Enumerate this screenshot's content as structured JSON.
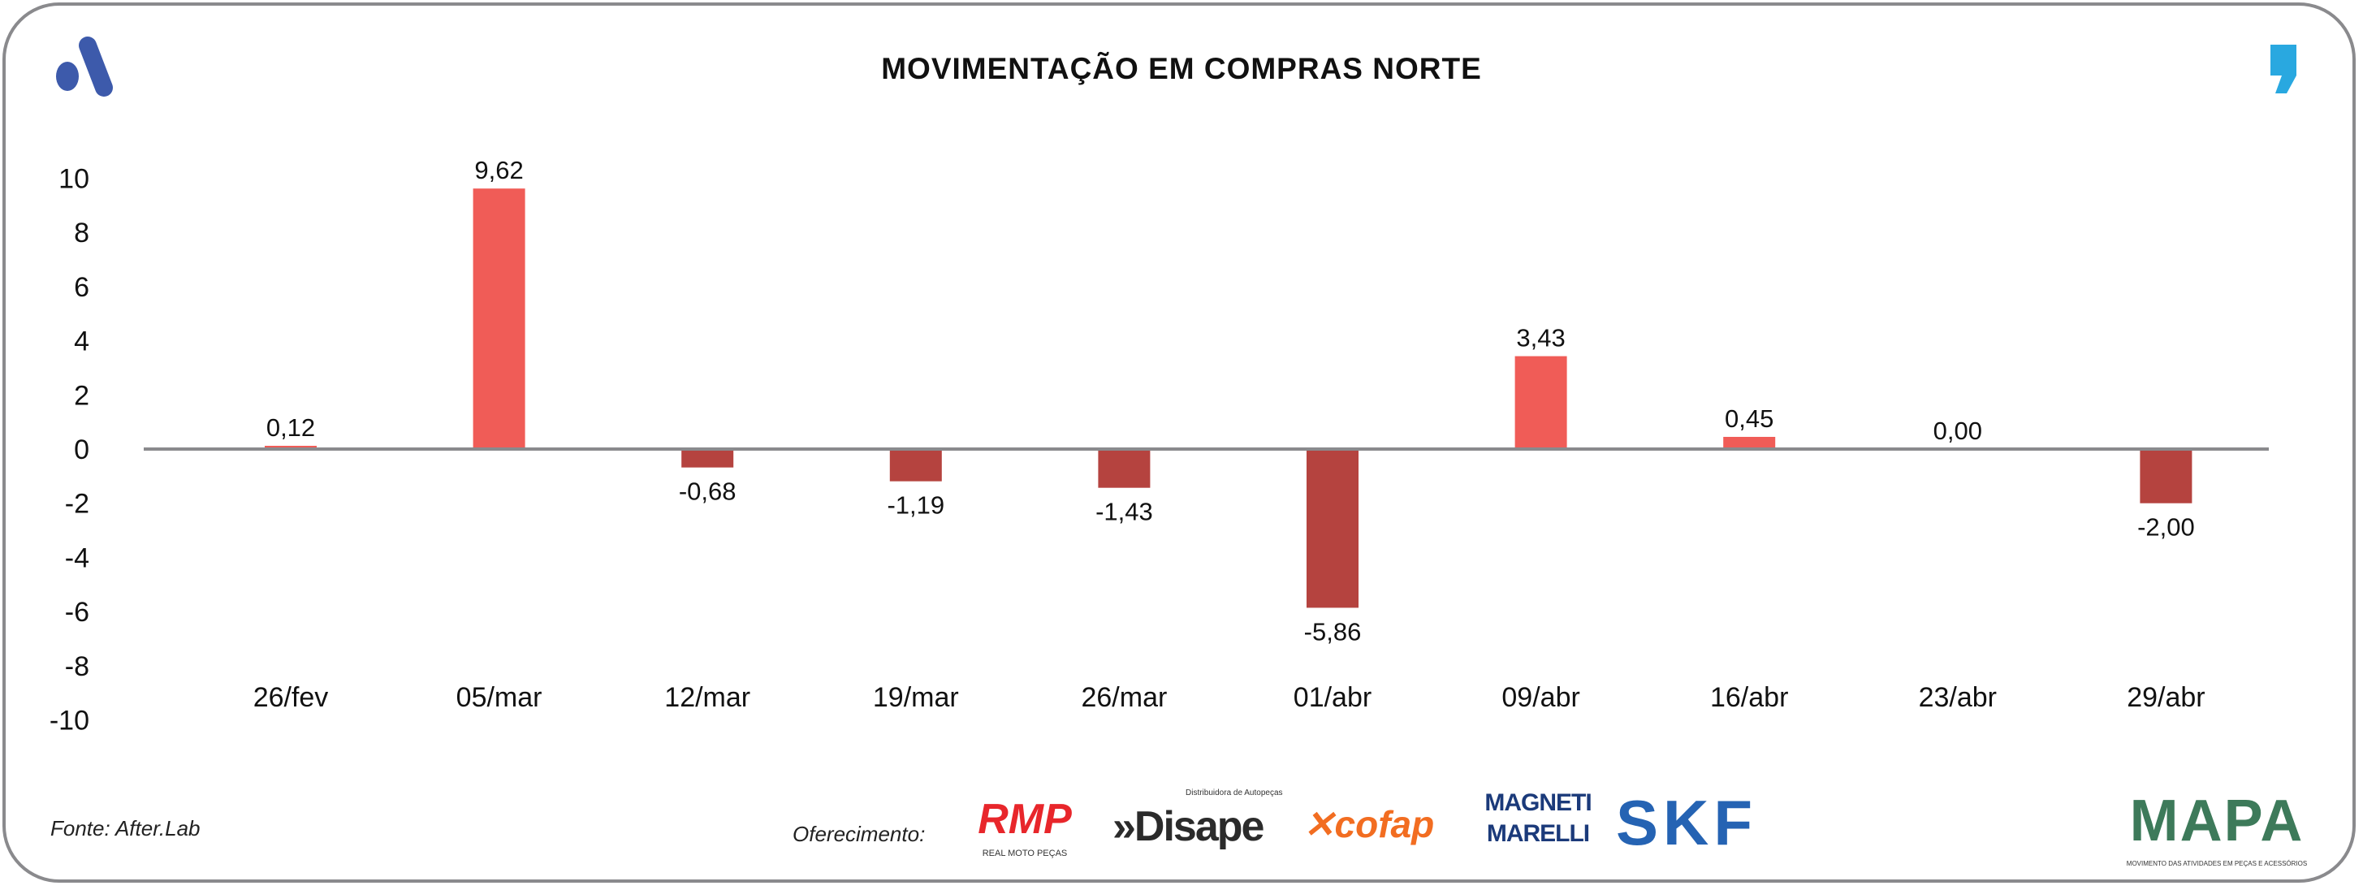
{
  "chart_data": {
    "type": "bar",
    "title": "MOVIMENTAÇÃO EM COMPRAS NORTE",
    "categories": [
      "26/fev",
      "05/mar",
      "12/mar",
      "19/mar",
      "26/mar",
      "01/abr",
      "09/abr",
      "16/abr",
      "23/abr",
      "29/abr"
    ],
    "values": [
      0.12,
      9.62,
      -0.68,
      -1.19,
      -1.43,
      -5.86,
      3.43,
      0.45,
      0.0,
      -2.0
    ],
    "data_labels": [
      "0,12",
      "9,62",
      "-0,68",
      "-1,19",
      "-1,43",
      "-5,86",
      "3,43",
      "0,45",
      "0,00",
      "-2,00"
    ],
    "ylim": [
      -10,
      10
    ],
    "yticks": [
      "10",
      "8",
      "6",
      "4",
      "2",
      "0",
      "-2",
      "-4",
      "-6",
      "-8",
      "-10"
    ],
    "grid": false,
    "legend": "none",
    "colors": {
      "positive": "#F05C57",
      "negative": "#B5433F",
      "axis": "#8a8a8d"
    }
  },
  "footer": {
    "source": "Fonte: After.Lab",
    "sponsor_label": "Oferecimento:",
    "sponsors": [
      "RMP",
      "REAL MOTO PEÇAS",
      "Disape",
      "Distribuidora de Autopeças",
      "cofap",
      "MAGNETI MARELLI",
      "SKF"
    ],
    "brand": "MAPA",
    "brand_tagline": "MOVIMENTO DAS ATIVIDADES EM PEÇAS E ACESSÓRIOS"
  }
}
